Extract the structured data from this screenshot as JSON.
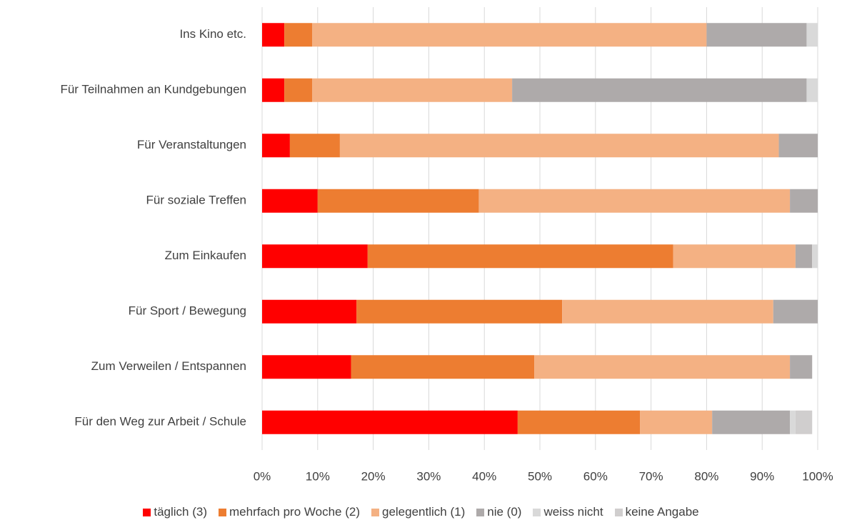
{
  "chart_data": {
    "type": "stacked_barh",
    "categories": [
      "Ins Kino etc.",
      "Für Teilnahmen an Kundgebungen",
      "Für Veranstaltungen",
      "Für soziale Treffen",
      "Zum Einkaufen",
      "Für Sport / Bewegung",
      "Zum Verweilen / Entspannen",
      "Für den Weg zur Arbeit / Schule"
    ],
    "series": [
      {
        "name": "täglich (3)",
        "color": "#ff0000",
        "values": [
          4,
          4,
          5,
          10,
          19,
          17,
          16,
          46
        ]
      },
      {
        "name": "mehrfach pro Woche (2)",
        "color": "#ed7d31",
        "values": [
          5,
          5,
          9,
          29,
          55,
          37,
          33,
          22
        ]
      },
      {
        "name": "gelegentlich (1)",
        "color": "#f4b183",
        "values": [
          71,
          36,
          79,
          56,
          22,
          38,
          46,
          13
        ]
      },
      {
        "name": "nie (0)",
        "color": "#aeaaaa",
        "values": [
          18,
          53,
          7,
          5,
          3,
          8,
          4,
          14
        ]
      },
      {
        "name": "weiss nicht",
        "color": "#d9d9d9",
        "values": [
          2,
          2,
          0,
          0,
          1,
          0,
          0,
          1
        ]
      },
      {
        "name": "keine Angabe",
        "color": "#d0cece",
        "values": [
          0,
          0,
          0,
          0,
          0,
          0,
          0,
          3
        ]
      }
    ],
    "xlim": [
      0,
      100
    ],
    "xticks": [
      {
        "value": 0,
        "label": "0%"
      },
      {
        "value": 10,
        "label": "10%"
      },
      {
        "value": 20,
        "label": "20%"
      },
      {
        "value": 30,
        "label": "30%"
      },
      {
        "value": 40,
        "label": "40%"
      },
      {
        "value": 50,
        "label": "50%"
      },
      {
        "value": 60,
        "label": "60%"
      },
      {
        "value": 70,
        "label": "70%"
      },
      {
        "value": 80,
        "label": "80%"
      },
      {
        "value": 90,
        "label": "90%"
      },
      {
        "value": 100,
        "label": "100%"
      }
    ],
    "grid": true,
    "legend": "bottom"
  }
}
